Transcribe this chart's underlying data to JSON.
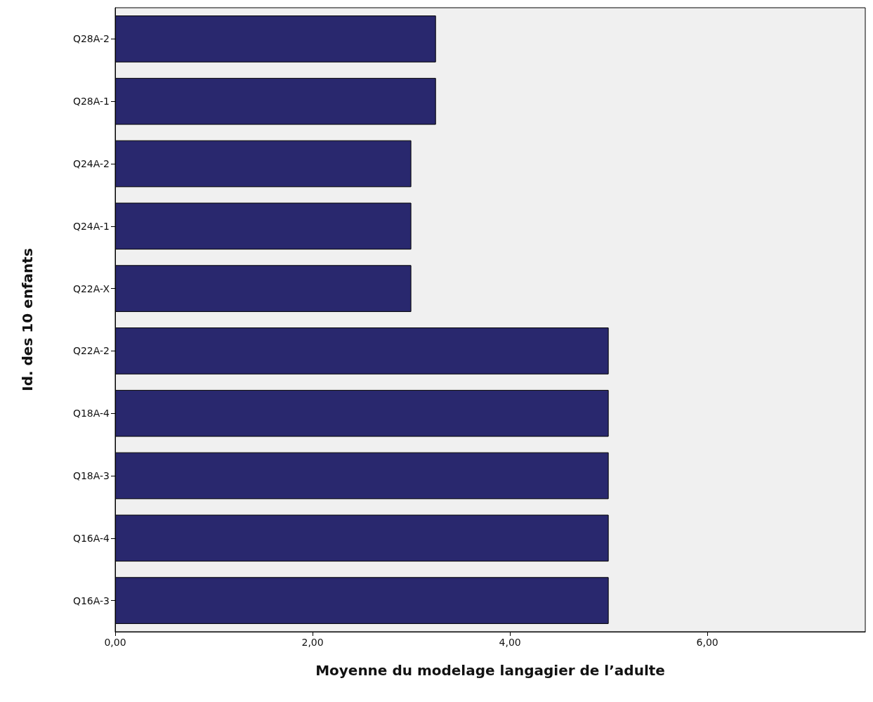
{
  "chart_data": {
    "type": "bar",
    "orientation": "horizontal",
    "xlabel": "Moyenne du modelage langagier de l’adulte",
    "ylabel": "Id. des 10 enfants",
    "categories": [
      "Q28A-2",
      "Q28A-1",
      "Q24A-2",
      "Q24A-1",
      "Q22A-X",
      "Q22A-2",
      "Q18A-4",
      "Q18A-3",
      "Q16A-4",
      "Q16A-3"
    ],
    "values": [
      3.25,
      3.25,
      3,
      3,
      3,
      5,
      5,
      5,
      5,
      5
    ],
    "color": "#29286e",
    "xlim": [
      0,
      7.6
    ],
    "xticks": [
      {
        "value": 0,
        "label": "0,00"
      },
      {
        "value": 2,
        "label": "2,00"
      },
      {
        "value": 4,
        "label": "4,00"
      },
      {
        "value": 6,
        "label": "6,00"
      }
    ],
    "grid": false
  }
}
